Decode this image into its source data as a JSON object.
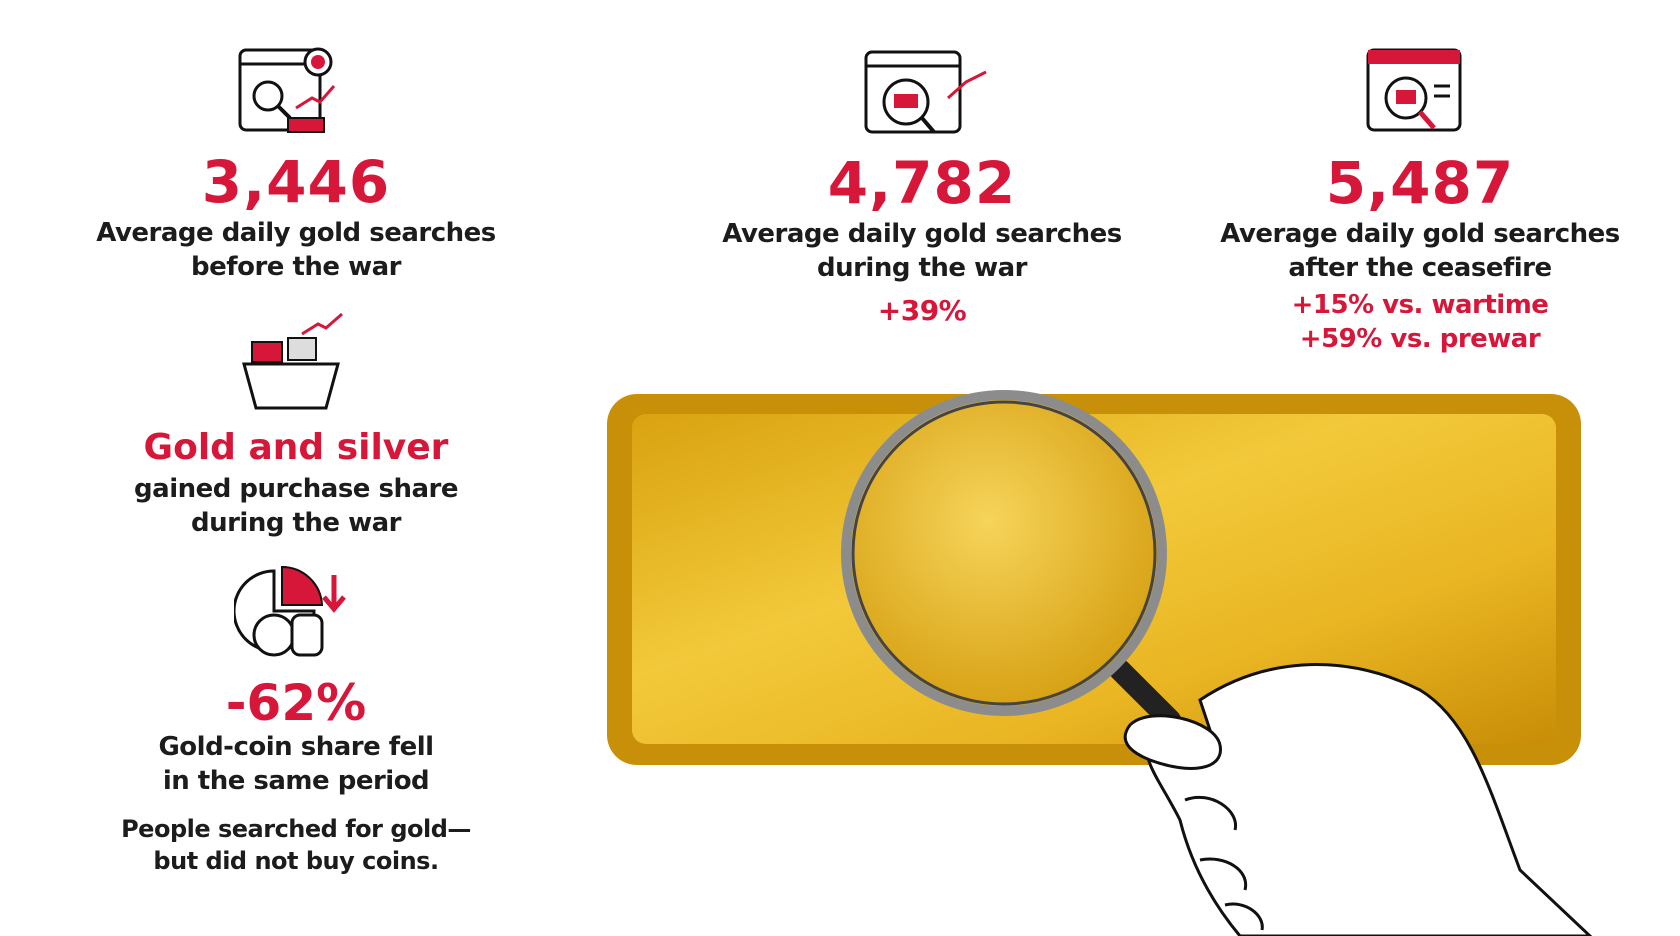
{
  "left": [
    {
      "figure": "3,446",
      "lines": [
        "Average daily gold searches",
        "before the war"
      ]
    },
    {
      "figure": "Gold and silver",
      "lines": [
        "gained purchase share",
        "during the war"
      ]
    },
    {
      "figure": "-62%",
      "lines": [
        "Gold-coin share fell",
        "in the same period"
      ],
      "note": [
        "People searched for gold—",
        "but did not buy coins."
      ]
    }
  ],
  "top": [
    {
      "figure": "4,782",
      "lines": [
        "Average daily gold searches",
        "during the war"
      ],
      "changes": [
        "+39%"
      ]
    },
    {
      "figure": "5,487",
      "lines": [
        "Average daily gold searches",
        "after the ceasefire"
      ],
      "changes": [
        "+15% vs. wartime",
        "+59% vs. prewar"
      ]
    }
  ]
}
